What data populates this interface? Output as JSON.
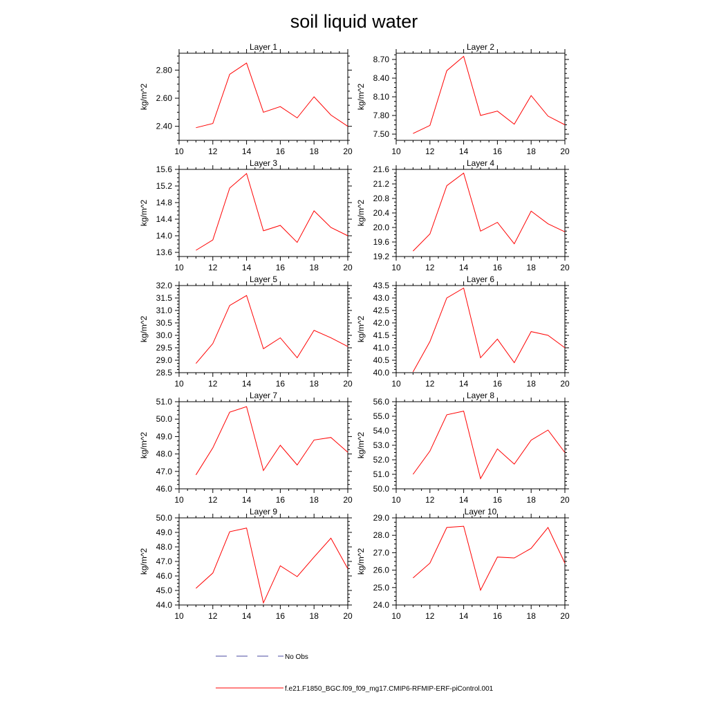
{
  "title": "soil liquid water",
  "legend": {
    "obs_label": "No Obs",
    "obs_color": "#4a4aa0",
    "model_label": "f.e21.F1850_BGC.f09_f09_mg17.CMIP6-RFMIP-ERF-piControl.001",
    "model_color": "#ff0000"
  },
  "chart_data": [
    {
      "type": "line",
      "title": "Layer 1",
      "ylabel": "kg/m^2",
      "xlim": [
        10,
        20
      ],
      "ylim": [
        2.3,
        2.92
      ],
      "xticks": [
        10,
        12,
        14,
        16,
        18,
        20
      ],
      "yticks": [
        "2.40",
        "2.60",
        "2.80"
      ],
      "series": [
        {
          "x": [
            11,
            12,
            13,
            14,
            15,
            16,
            17,
            18,
            19,
            20
          ],
          "values": [
            2.39,
            2.42,
            2.77,
            2.85,
            2.5,
            2.54,
            2.46,
            2.61,
            2.48,
            2.4
          ],
          "color": "#ff0000"
        }
      ]
    },
    {
      "type": "line",
      "title": "Layer 2",
      "ylabel": "kg/m^2",
      "xlim": [
        10,
        20
      ],
      "ylim": [
        7.4,
        8.8
      ],
      "xticks": [
        10,
        12,
        14,
        16,
        18,
        20
      ],
      "yticks": [
        "7.50",
        "7.80",
        "8.10",
        "8.40",
        "8.70"
      ],
      "series": [
        {
          "x": [
            11,
            12,
            13,
            14,
            15,
            16,
            17,
            18,
            19,
            20
          ],
          "values": [
            7.51,
            7.64,
            8.52,
            8.75,
            7.8,
            7.87,
            7.66,
            8.12,
            7.79,
            7.65
          ],
          "color": "#ff0000"
        }
      ]
    },
    {
      "type": "line",
      "title": "Layer 3",
      "ylabel": "kg/m^2",
      "xlim": [
        10,
        20
      ],
      "ylim": [
        13.5,
        15.6
      ],
      "xticks": [
        10,
        12,
        14,
        16,
        18,
        20
      ],
      "yticks": [
        "13.6",
        "14.0",
        "14.4",
        "14.8",
        "15.2",
        "15.6"
      ],
      "series": [
        {
          "x": [
            11,
            12,
            13,
            14,
            15,
            16,
            17,
            18,
            19,
            20
          ],
          "values": [
            13.65,
            13.9,
            15.15,
            15.5,
            14.12,
            14.25,
            13.84,
            14.6,
            14.2,
            14.0
          ],
          "color": "#ff0000"
        }
      ]
    },
    {
      "type": "line",
      "title": "Layer 4",
      "ylabel": "kg/m^2",
      "xlim": [
        10,
        20
      ],
      "ylim": [
        19.2,
        21.6
      ],
      "xticks": [
        10,
        12,
        14,
        16,
        18,
        20
      ],
      "yticks": [
        "19.2",
        "19.6",
        "20.0",
        "20.4",
        "20.8",
        "21.2",
        "21.6"
      ],
      "series": [
        {
          "x": [
            11,
            12,
            13,
            14,
            15,
            16,
            17,
            18,
            19,
            20
          ],
          "values": [
            19.35,
            19.82,
            21.15,
            21.5,
            19.9,
            20.14,
            19.55,
            20.45,
            20.1,
            19.88
          ],
          "color": "#ff0000"
        }
      ]
    },
    {
      "type": "line",
      "title": "Layer 5",
      "ylabel": "kg/m^2",
      "xlim": [
        10,
        20
      ],
      "ylim": [
        28.5,
        32.0
      ],
      "xticks": [
        10,
        12,
        14,
        16,
        18,
        20
      ],
      "yticks": [
        "28.5",
        "29.0",
        "29.5",
        "30.0",
        "30.5",
        "31.0",
        "31.5",
        "32.0"
      ],
      "series": [
        {
          "x": [
            11,
            12,
            13,
            14,
            15,
            16,
            17,
            18,
            19,
            20
          ],
          "values": [
            28.87,
            29.67,
            31.2,
            31.6,
            29.46,
            29.9,
            29.1,
            30.2,
            29.9,
            29.55
          ],
          "color": "#ff0000"
        }
      ]
    },
    {
      "type": "line",
      "title": "Layer 6",
      "ylabel": "kg/m^2",
      "xlim": [
        10,
        20
      ],
      "ylim": [
        40.0,
        43.5
      ],
      "xticks": [
        10,
        12,
        14,
        16,
        18,
        20
      ],
      "yticks": [
        "40.0",
        "40.5",
        "41.0",
        "41.5",
        "42.0",
        "42.5",
        "43.0",
        "43.5"
      ],
      "series": [
        {
          "x": [
            11,
            12,
            13,
            14,
            15,
            16,
            17,
            18,
            19,
            20
          ],
          "values": [
            40.03,
            41.25,
            43.0,
            43.4,
            40.6,
            41.35,
            40.4,
            41.65,
            41.5,
            41.0
          ],
          "color": "#ff0000"
        }
      ]
    },
    {
      "type": "line",
      "title": "Layer 7",
      "ylabel": "kg/m^2",
      "xlim": [
        10,
        20
      ],
      "ylim": [
        46.0,
        51.0
      ],
      "xticks": [
        10,
        12,
        14,
        16,
        18,
        20
      ],
      "yticks": [
        "46.0",
        "47.0",
        "48.0",
        "49.0",
        "50.0",
        "51.0"
      ],
      "series": [
        {
          "x": [
            11,
            12,
            13,
            14,
            15,
            16,
            17,
            18,
            19,
            20
          ],
          "values": [
            46.8,
            48.35,
            50.4,
            50.72,
            47.05,
            48.5,
            47.37,
            48.8,
            48.95,
            48.1
          ],
          "color": "#ff0000"
        }
      ]
    },
    {
      "type": "line",
      "title": "Layer 8",
      "ylabel": "kg/m^2",
      "xlim": [
        10,
        20
      ],
      "ylim": [
        50.0,
        56.0
      ],
      "xticks": [
        10,
        12,
        14,
        16,
        18,
        20
      ],
      "yticks": [
        "50.0",
        "51.0",
        "52.0",
        "53.0",
        "54.0",
        "55.0",
        "56.0"
      ],
      "series": [
        {
          "x": [
            11,
            12,
            13,
            14,
            15,
            16,
            17,
            18,
            19,
            20
          ],
          "values": [
            51.0,
            52.6,
            55.1,
            55.35,
            50.7,
            52.75,
            51.7,
            53.35,
            54.05,
            52.5
          ],
          "color": "#ff0000"
        }
      ]
    },
    {
      "type": "line",
      "title": "Layer 9",
      "ylabel": "kg/m^2",
      "xlim": [
        10,
        20
      ],
      "ylim": [
        44.0,
        50.0
      ],
      "xticks": [
        10,
        12,
        14,
        16,
        18,
        20
      ],
      "yticks": [
        "44.0",
        "45.0",
        "46.0",
        "47.0",
        "48.0",
        "49.0",
        "50.0"
      ],
      "series": [
        {
          "x": [
            11,
            12,
            13,
            14,
            15,
            16,
            17,
            18,
            19,
            20
          ],
          "values": [
            45.15,
            46.2,
            49.05,
            49.3,
            44.15,
            46.7,
            45.95,
            47.3,
            48.6,
            46.5
          ],
          "color": "#ff0000"
        }
      ]
    },
    {
      "type": "line",
      "title": "Layer 10",
      "ylabel": "kg/m^2",
      "xlim": [
        10,
        20
      ],
      "ylim": [
        24.0,
        29.0
      ],
      "xticks": [
        10,
        12,
        14,
        16,
        18,
        20
      ],
      "yticks": [
        "24.0",
        "25.0",
        "26.0",
        "27.0",
        "28.0",
        "29.0"
      ],
      "series": [
        {
          "x": [
            11,
            12,
            13,
            14,
            15,
            16,
            17,
            18,
            19,
            20
          ],
          "values": [
            25.55,
            26.4,
            28.45,
            28.52,
            24.85,
            26.75,
            26.7,
            27.25,
            28.45,
            26.4
          ],
          "color": "#ff0000"
        }
      ]
    }
  ]
}
